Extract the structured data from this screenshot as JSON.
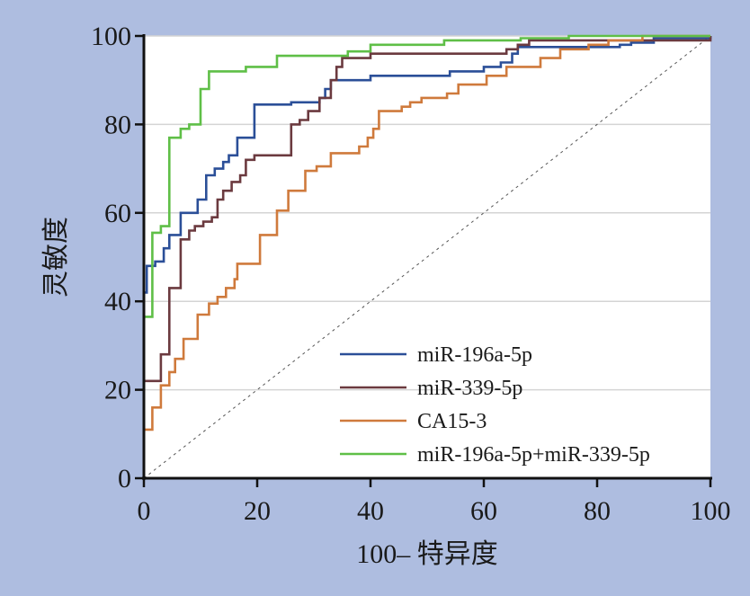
{
  "chart_data": {
    "type": "line",
    "title": "",
    "xlabel": "100– 特异度",
    "ylabel": "灵敏度",
    "xlim": [
      0,
      100
    ],
    "ylim": [
      0,
      100
    ],
    "xticks": [
      "0",
      "20",
      "40",
      "60",
      "80",
      "100"
    ],
    "yticks": [
      "0",
      "20",
      "40",
      "60",
      "80",
      "100"
    ],
    "grid": "horizontal",
    "legend_position": "bottom-right",
    "reference_line": "diagonal-dashed",
    "series": [
      {
        "name": "miR-196a-5p",
        "color": "#2b4f98",
        "points": [
          [
            0,
            0
          ],
          [
            0,
            42
          ],
          [
            0.5,
            42
          ],
          [
            0.5,
            48
          ],
          [
            2,
            48
          ],
          [
            2,
            49
          ],
          [
            3.5,
            49
          ],
          [
            3.5,
            52
          ],
          [
            4.5,
            52
          ],
          [
            4.5,
            55
          ],
          [
            6.5,
            55
          ],
          [
            6.5,
            60
          ],
          [
            9.5,
            60
          ],
          [
            9.5,
            63
          ],
          [
            11,
            63
          ],
          [
            11,
            68.5
          ],
          [
            12.5,
            68.5
          ],
          [
            12.5,
            70
          ],
          [
            14,
            70
          ],
          [
            14,
            71.5
          ],
          [
            15,
            71.5
          ],
          [
            15,
            73
          ],
          [
            16.5,
            73
          ],
          [
            16.5,
            77
          ],
          [
            19.5,
            77
          ],
          [
            19.5,
            84.5
          ],
          [
            26,
            84.5
          ],
          [
            26,
            85
          ],
          [
            31,
            85
          ],
          [
            31,
            86
          ],
          [
            32,
            86
          ],
          [
            32,
            88
          ],
          [
            33,
            88
          ],
          [
            33,
            90
          ],
          [
            40,
            90
          ],
          [
            40,
            91
          ],
          [
            54,
            91
          ],
          [
            54,
            92
          ],
          [
            60,
            92
          ],
          [
            60,
            93
          ],
          [
            63,
            93
          ],
          [
            63,
            94
          ],
          [
            65,
            94
          ],
          [
            65,
            96
          ],
          [
            66,
            96
          ],
          [
            66,
            97.5
          ],
          [
            84,
            97.5
          ],
          [
            84,
            98
          ],
          [
            86,
            98
          ],
          [
            86,
            98.5
          ],
          [
            90,
            98.5
          ],
          [
            90,
            99.5
          ],
          [
            100,
            99.5
          ],
          [
            100,
            100
          ]
        ]
      },
      {
        "name": "miR-339-5p",
        "color": "#6b3a3f",
        "points": [
          [
            0,
            0
          ],
          [
            0,
            22
          ],
          [
            3,
            22
          ],
          [
            3,
            28
          ],
          [
            4.5,
            28
          ],
          [
            4.5,
            43
          ],
          [
            6.5,
            43
          ],
          [
            6.5,
            54
          ],
          [
            8,
            54
          ],
          [
            8,
            56
          ],
          [
            9,
            56
          ],
          [
            9,
            57
          ],
          [
            10.5,
            57
          ],
          [
            10.5,
            58
          ],
          [
            12,
            58
          ],
          [
            12,
            59
          ],
          [
            13,
            59
          ],
          [
            13,
            63
          ],
          [
            14,
            63
          ],
          [
            14,
            65
          ],
          [
            15.5,
            65
          ],
          [
            15.5,
            67
          ],
          [
            17,
            67
          ],
          [
            17,
            68.5
          ],
          [
            18,
            68.5
          ],
          [
            18,
            72
          ],
          [
            19.5,
            72
          ],
          [
            19.5,
            73
          ],
          [
            26,
            73
          ],
          [
            26,
            80
          ],
          [
            27.5,
            80
          ],
          [
            27.5,
            81
          ],
          [
            29,
            81
          ],
          [
            29,
            83
          ],
          [
            31,
            83
          ],
          [
            31,
            86
          ],
          [
            33,
            86
          ],
          [
            33,
            90
          ],
          [
            34,
            90
          ],
          [
            34,
            93
          ],
          [
            35,
            93
          ],
          [
            35,
            95
          ],
          [
            40,
            95
          ],
          [
            40,
            96
          ],
          [
            64,
            96
          ],
          [
            64,
            97
          ],
          [
            66,
            97
          ],
          [
            66,
            98
          ],
          [
            68,
            98
          ],
          [
            68,
            99
          ],
          [
            100,
            99
          ],
          [
            100,
            100
          ]
        ]
      },
      {
        "name": "CA15-3",
        "color": "#cf7a3c",
        "points": [
          [
            0,
            0
          ],
          [
            0,
            11
          ],
          [
            1.5,
            11
          ],
          [
            1.5,
            16
          ],
          [
            3,
            16
          ],
          [
            3,
            21
          ],
          [
            4.5,
            21
          ],
          [
            4.5,
            24
          ],
          [
            5.5,
            24
          ],
          [
            5.5,
            27
          ],
          [
            7,
            27
          ],
          [
            7,
            31.5
          ],
          [
            9.5,
            31.5
          ],
          [
            9.5,
            37
          ],
          [
            11.5,
            37
          ],
          [
            11.5,
            39.5
          ],
          [
            13,
            39.5
          ],
          [
            13,
            41
          ],
          [
            14.5,
            41
          ],
          [
            14.5,
            43
          ],
          [
            16,
            43
          ],
          [
            16,
            45
          ],
          [
            16.5,
            45
          ],
          [
            16.5,
            48.5
          ],
          [
            20.5,
            48.5
          ],
          [
            20.5,
            55
          ],
          [
            23.5,
            55
          ],
          [
            23.5,
            60.5
          ],
          [
            25.5,
            60.5
          ],
          [
            25.5,
            65
          ],
          [
            28.5,
            65
          ],
          [
            28.5,
            69.5
          ],
          [
            30.5,
            69.5
          ],
          [
            30.5,
            70.5
          ],
          [
            33,
            70.5
          ],
          [
            33,
            73.5
          ],
          [
            38,
            73.5
          ],
          [
            38,
            75
          ],
          [
            39.5,
            75
          ],
          [
            39.5,
            77
          ],
          [
            40.5,
            77
          ],
          [
            40.5,
            79
          ],
          [
            41.5,
            79
          ],
          [
            41.5,
            83
          ],
          [
            45.5,
            83
          ],
          [
            45.5,
            84
          ],
          [
            47,
            84
          ],
          [
            47,
            85
          ],
          [
            49,
            85
          ],
          [
            49,
            86
          ],
          [
            53.5,
            86
          ],
          [
            53.5,
            87
          ],
          [
            55.5,
            87
          ],
          [
            55.5,
            89
          ],
          [
            60.5,
            89
          ],
          [
            60.5,
            91
          ],
          [
            64,
            91
          ],
          [
            64,
            93
          ],
          [
            70,
            93
          ],
          [
            70,
            95
          ],
          [
            73.5,
            95
          ],
          [
            73.5,
            97
          ],
          [
            78.5,
            97
          ],
          [
            78.5,
            98
          ],
          [
            82,
            98
          ],
          [
            82,
            99
          ],
          [
            88,
            99
          ],
          [
            88,
            100
          ],
          [
            100,
            100
          ]
        ]
      },
      {
        "name": "miR-196a-5p+miR-339-5p",
        "color": "#5fbf47",
        "points": [
          [
            0,
            0
          ],
          [
            0,
            36.5
          ],
          [
            1.5,
            36.5
          ],
          [
            1.5,
            55.5
          ],
          [
            3,
            55.5
          ],
          [
            3,
            57
          ],
          [
            4.5,
            57
          ],
          [
            4.5,
            77
          ],
          [
            6.5,
            77
          ],
          [
            6.5,
            79
          ],
          [
            8,
            79
          ],
          [
            8,
            80
          ],
          [
            10,
            80
          ],
          [
            10,
            88
          ],
          [
            11.5,
            88
          ],
          [
            11.5,
            92
          ],
          [
            18,
            92
          ],
          [
            18,
            93
          ],
          [
            23.5,
            93
          ],
          [
            23.5,
            95.5
          ],
          [
            36,
            95.5
          ],
          [
            36,
            96.5
          ],
          [
            40,
            96.5
          ],
          [
            40,
            98
          ],
          [
            53,
            98
          ],
          [
            53,
            99
          ],
          [
            66.5,
            99
          ],
          [
            66.5,
            99.5
          ],
          [
            75,
            99.5
          ],
          [
            75,
            100
          ],
          [
            100,
            100
          ]
        ]
      }
    ]
  }
}
